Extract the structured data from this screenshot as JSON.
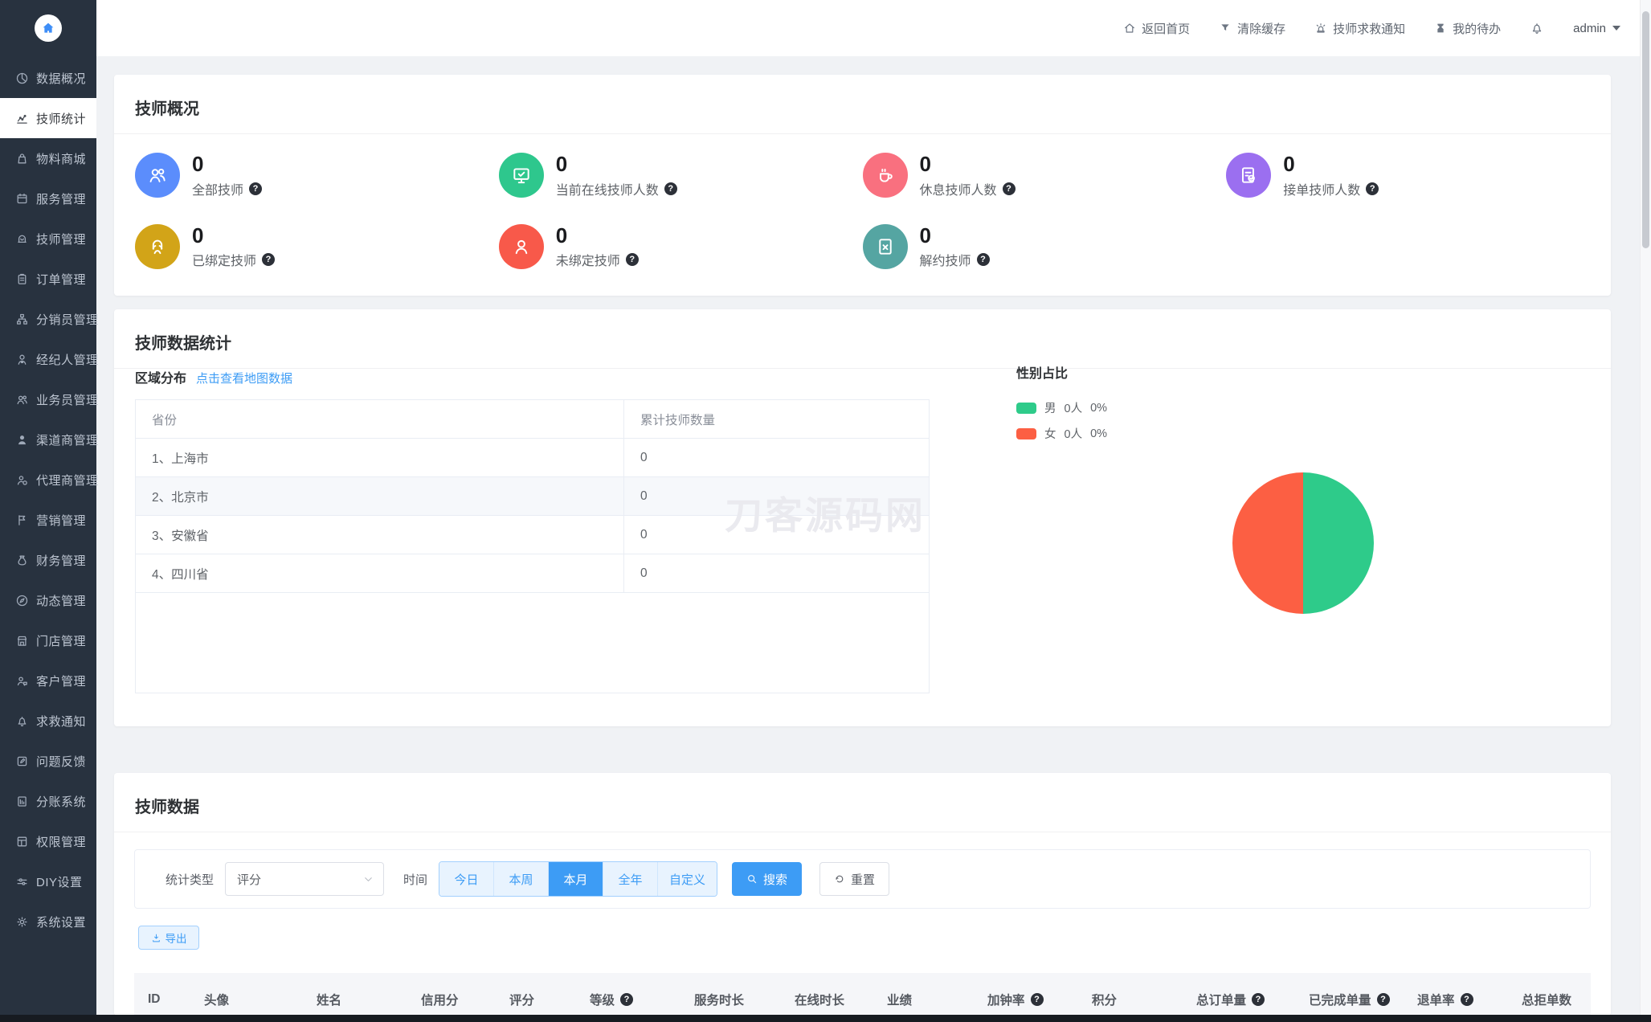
{
  "sidebar": {
    "items": [
      {
        "label": "数据概况",
        "icon": "chart-pie",
        "active": false
      },
      {
        "label": "技师统计",
        "icon": "chart-trend",
        "active": true
      },
      {
        "label": "物料商城",
        "icon": "shop-bag",
        "active": false
      },
      {
        "label": "服务管理",
        "icon": "calendar",
        "active": false
      },
      {
        "label": "技师管理",
        "icon": "technician",
        "active": false
      },
      {
        "label": "订单管理",
        "icon": "clipboard",
        "active": false
      },
      {
        "label": "分销员管理",
        "icon": "org-chart",
        "active": false
      },
      {
        "label": "经纪人管理",
        "icon": "broker",
        "active": false
      },
      {
        "label": "业务员管理",
        "icon": "users",
        "active": false
      },
      {
        "label": "渠道商管理",
        "icon": "channel-user",
        "active": false
      },
      {
        "label": "代理商管理",
        "icon": "agent-user",
        "active": false
      },
      {
        "label": "营销管理",
        "icon": "marketing-flag",
        "active": false
      },
      {
        "label": "财务管理",
        "icon": "money-bag",
        "active": false
      },
      {
        "label": "动态管理",
        "icon": "compass",
        "active": false
      },
      {
        "label": "门店管理",
        "icon": "storefront",
        "active": false
      },
      {
        "label": "客户管理",
        "icon": "customer",
        "active": false
      },
      {
        "label": "求救通知",
        "icon": "bell",
        "active": false
      },
      {
        "label": "问题反馈",
        "icon": "feedback-pen",
        "active": false
      },
      {
        "label": "分账系统",
        "icon": "ledger",
        "active": false
      },
      {
        "label": "权限管理",
        "icon": "permission-doc",
        "active": false
      },
      {
        "label": "DIY设置",
        "icon": "diy-sliders",
        "active": false
      },
      {
        "label": "系统设置",
        "icon": "gear",
        "active": false
      }
    ],
    "logo_icon": "home-logo",
    "logo_color": "#3e8ef7"
  },
  "header": {
    "links": [
      {
        "label": "返回首页",
        "icon": "home"
      },
      {
        "label": "清除缓存",
        "icon": "funnel"
      },
      {
        "label": "技师求救通知",
        "icon": "siren"
      },
      {
        "label": "我的待办",
        "icon": "hourglass"
      }
    ],
    "bell_icon": "bell",
    "user": "admin"
  },
  "overview": {
    "title": "技师概况",
    "stats": [
      {
        "value": "0",
        "label": "全部技师",
        "icon": "users2",
        "color": "#5b8dfc"
      },
      {
        "value": "0",
        "label": "当前在线技师人数",
        "icon": "monitor-check",
        "color": "#2ec78d"
      },
      {
        "value": "0",
        "label": "休息技师人数",
        "icon": "coffee",
        "color": "#f9707f"
      },
      {
        "value": "0",
        "label": "接单技师人数",
        "icon": "doc-check",
        "color": "#9b6ff0"
      },
      {
        "value": "0",
        "label": "已绑定技师",
        "icon": "person-girl",
        "color": "#d2a418"
      },
      {
        "value": "0",
        "label": "未绑定技师",
        "icon": "person-boy",
        "color": "#f8594a"
      },
      {
        "value": "0",
        "label": "解约技师",
        "icon": "doc-x",
        "color": "#55a5a2"
      }
    ]
  },
  "stats_section": {
    "title": "技师数据统计",
    "watermark": "刀客源码网",
    "region": {
      "title": "区域分布",
      "link": "点击查看地图数据",
      "columns": [
        "省份",
        "累计技师数量"
      ],
      "rows": [
        [
          "1、上海市",
          "0"
        ],
        [
          "2、北京市",
          "0"
        ],
        [
          "3、安徽省",
          "0"
        ],
        [
          "4、四川省",
          "0"
        ]
      ]
    },
    "gender": {
      "title": "性别占比",
      "legend": [
        {
          "label": "男",
          "count": "0人",
          "pct": "0%",
          "color": "#2ecb8a"
        },
        {
          "label": "女",
          "count": "0人",
          "pct": "0%",
          "color": "#fc5f43"
        }
      ]
    }
  },
  "chart_data": {
    "type": "pie",
    "title": "性别占比",
    "labels": [
      "男",
      "女"
    ],
    "counts": [
      0,
      0
    ],
    "pct_labels": [
      "0%",
      "0%"
    ],
    "rendered_shares_pct": [
      50,
      50
    ],
    "colors": [
      "#2ecb8a",
      "#fc5f43"
    ],
    "legend_position": "top-left"
  },
  "data_section": {
    "title": "技师数据",
    "filter": {
      "type_label": "统计类型",
      "type_value": "评分",
      "time_label": "时间",
      "time_options": [
        "今日",
        "本周",
        "本月",
        "全年",
        "自定义"
      ],
      "time_active": "本月",
      "search_label": "搜索",
      "search_icon": "search",
      "reset_label": "重置",
      "reset_icon": "reset"
    },
    "export_label": "导出",
    "export_icon": "download",
    "table": {
      "headers": [
        {
          "label": "ID",
          "help": false
        },
        {
          "label": "头像",
          "help": false
        },
        {
          "label": "姓名",
          "help": false
        },
        {
          "label": "信用分",
          "help": false
        },
        {
          "label": "评分",
          "help": false
        },
        {
          "label": "等级",
          "help": true
        },
        {
          "label": "服务时长",
          "help": false
        },
        {
          "label": "在线时长",
          "help": false
        },
        {
          "label": "业绩",
          "help": false
        },
        {
          "label": "加钟率",
          "help": true
        },
        {
          "label": "积分",
          "help": false
        },
        {
          "label": "总订单量",
          "help": true
        },
        {
          "label": "已完成单量",
          "help": true
        },
        {
          "label": "退单率",
          "help": true
        },
        {
          "label": "总拒单数",
          "help": false
        }
      ],
      "rows": []
    }
  }
}
